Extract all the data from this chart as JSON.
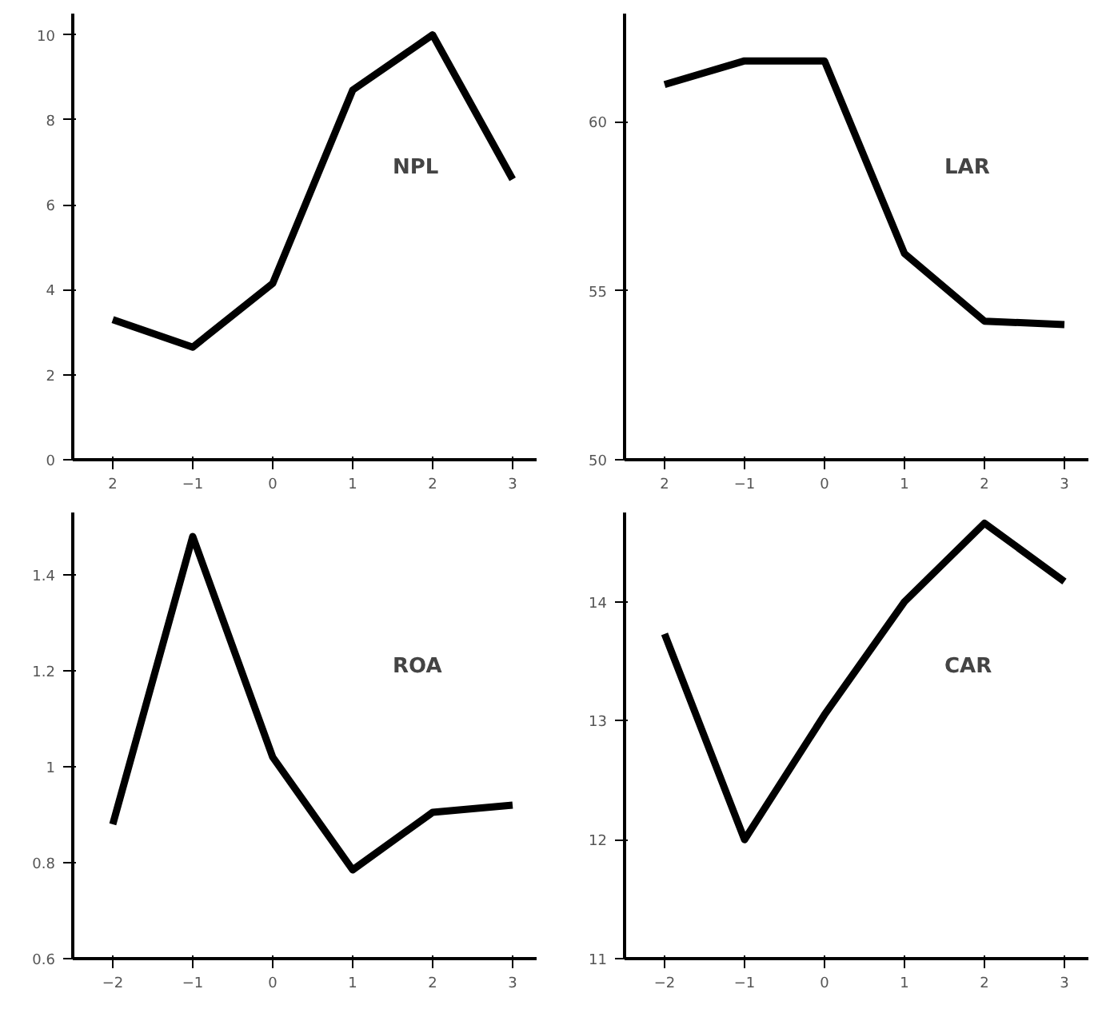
{
  "chart_data": [
    {
      "type": "line",
      "annotations": [
        "NPL"
      ],
      "x": [
        -2,
        -1,
        0,
        1,
        2,
        3
      ],
      "values": [
        3.3,
        2.65,
        4.15,
        8.7,
        10.0,
        6.6
      ],
      "color": "#000000",
      "xlim": [
        -2.5,
        3.3
      ],
      "xticks": [
        {
          "value": -2,
          "label": "2"
        },
        -1,
        0,
        1,
        2,
        3
      ],
      "ylim": [
        0,
        10.5
      ],
      "yticks": [
        0,
        2,
        4,
        6,
        8,
        10
      ],
      "grid": false,
      "marker": "none",
      "line_style": "solid"
    },
    {
      "type": "line",
      "annotations": [
        "LAR"
      ],
      "x": [
        -2,
        -1,
        0,
        1,
        2,
        3
      ],
      "values": [
        61.1,
        61.8,
        61.8,
        56.1,
        54.1,
        54.0
      ],
      "color": "#000000",
      "xlim": [
        -2.5,
        3.3
      ],
      "xticks": [
        {
          "value": -2,
          "label": "2"
        },
        -1,
        0,
        1,
        2,
        3
      ],
      "ylim": [
        50,
        63.2
      ],
      "yticks": [
        50,
        55,
        60
      ],
      "grid": false,
      "marker": "none",
      "line_style": "solid"
    },
    {
      "type": "line",
      "annotations": [
        "ROA"
      ],
      "x": [
        -2,
        -1,
        0,
        1,
        2,
        3
      ],
      "values": [
        0.88,
        1.48,
        1.02,
        0.785,
        0.905,
        0.92
      ],
      "color": "#000000",
      "xlim": [
        -2.5,
        3.3
      ],
      "xticks": [
        -2,
        -1,
        0,
        1,
        2,
        3
      ],
      "ylim": [
        0.6,
        1.53
      ],
      "yticks": [
        0.6,
        0.8,
        1,
        1.2,
        1.4
      ],
      "grid": false,
      "marker": "none",
      "line_style": "solid"
    },
    {
      "type": "line",
      "annotations": [
        "CAR"
      ],
      "x": [
        -2,
        -1,
        0,
        1,
        2,
        3
      ],
      "values": [
        13.73,
        12.0,
        13.05,
        14.0,
        14.66,
        14.17
      ],
      "color": "#000000",
      "xlim": [
        -2.5,
        3.3
      ],
      "xticks": [
        -2,
        -1,
        0,
        1,
        2,
        3
      ],
      "ylim": [
        11,
        14.75
      ],
      "yticks": [
        11,
        12,
        13,
        14
      ],
      "grid": false,
      "marker": "none",
      "line_style": "solid"
    }
  ]
}
